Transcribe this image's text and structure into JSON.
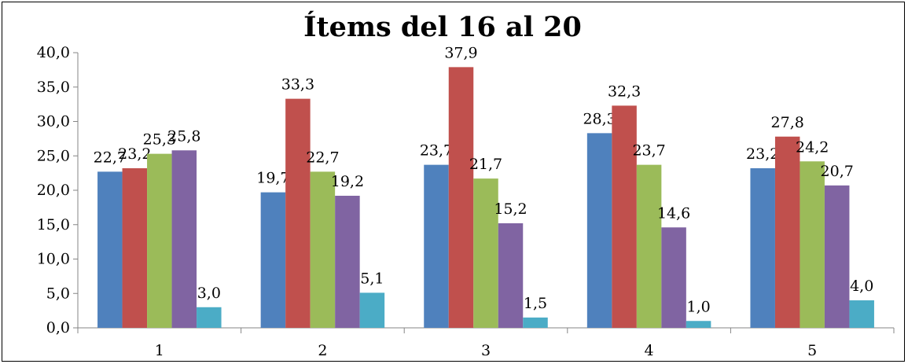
{
  "chart_data": {
    "type": "bar",
    "title": "Ítems del 16 al 20",
    "xlabel": "",
    "ylabel": "",
    "categories": [
      "1",
      "2",
      "3",
      "4",
      "5"
    ],
    "ylim": [
      0,
      40
    ],
    "yticks": [
      "0,0",
      "5,0",
      "10,0",
      "15,0",
      "20,0",
      "25,0",
      "30,0",
      "35,0",
      "40,0"
    ],
    "grid": false,
    "legend": "none",
    "series": [
      {
        "values": [
          22.7,
          19.7,
          23.7,
          28.3,
          23.2
        ],
        "labels": [
          "22,7",
          "19,7",
          "23,7",
          "28,3",
          "23,2"
        ],
        "color": "#4F81BD"
      },
      {
        "values": [
          23.2,
          33.3,
          37.9,
          32.3,
          27.8
        ],
        "labels": [
          "23,2",
          "33,3",
          "37,9",
          "32,3",
          "27,8"
        ],
        "color": "#C0504D"
      },
      {
        "values": [
          25.3,
          22.7,
          21.7,
          23.7,
          24.2
        ],
        "labels": [
          "25,3",
          "22,7",
          "21,7",
          "23,7",
          "24,2"
        ],
        "color": "#9BBB59"
      },
      {
        "values": [
          25.8,
          19.2,
          15.2,
          14.6,
          20.7
        ],
        "labels": [
          "25,8",
          "19,2",
          "15,2",
          "14,6",
          "20,7"
        ],
        "color": "#8064A2"
      },
      {
        "values": [
          3.0,
          5.1,
          1.5,
          1.0,
          4.0
        ],
        "labels": [
          "3,0",
          "5,1",
          "1,5",
          "1,0",
          "4,0"
        ],
        "color": "#4BACC6"
      }
    ]
  }
}
